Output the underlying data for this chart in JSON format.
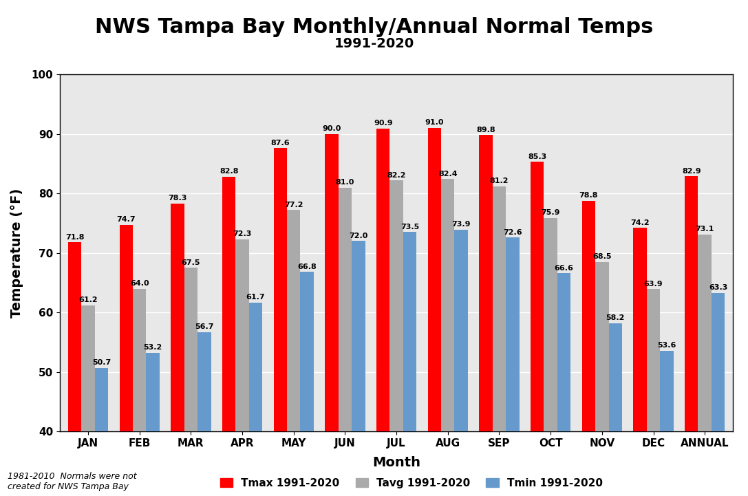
{
  "title": "NWS Tampa Bay Monthly/Annual Normal Temps",
  "subtitle": "1991-2020",
  "xlabel": "Month",
  "ylabel": "Temperature (°F)",
  "categories": [
    "JAN",
    "FEB",
    "MAR",
    "APR",
    "MAY",
    "JUN",
    "JUL",
    "AUG",
    "SEP",
    "OCT",
    "NOV",
    "DEC",
    "ANNUAL"
  ],
  "tmax": [
    71.8,
    74.7,
    78.3,
    82.8,
    87.6,
    90.0,
    90.9,
    91.0,
    89.8,
    85.3,
    78.8,
    74.2,
    82.9
  ],
  "tavg": [
    61.2,
    64.0,
    67.5,
    72.3,
    77.2,
    81.0,
    82.2,
    82.4,
    81.2,
    75.9,
    68.5,
    63.9,
    73.1
  ],
  "tmin": [
    50.7,
    53.2,
    56.7,
    61.7,
    66.8,
    72.0,
    73.5,
    73.9,
    72.6,
    66.6,
    58.2,
    53.6,
    63.3
  ],
  "tmax_color": "#FF0000",
  "tavg_color": "#AAAAAA",
  "tmin_color": "#6699CC",
  "ylim": [
    40,
    100
  ],
  "yticks": [
    40,
    50,
    60,
    70,
    80,
    90,
    100
  ],
  "bar_width": 0.26,
  "bg_color": "#E8E8E8",
  "legend_labels": [
    "Tmax 1991-2020",
    "Tavg 1991-2020",
    "Tmin 1991-2020"
  ],
  "footnote": "1981-2010  Normals were not\ncreated for NWS Tampa Bay",
  "title_fontsize": 22,
  "subtitle_fontsize": 14,
  "label_fontsize": 14,
  "tick_fontsize": 11,
  "value_fontsize": 8.0
}
